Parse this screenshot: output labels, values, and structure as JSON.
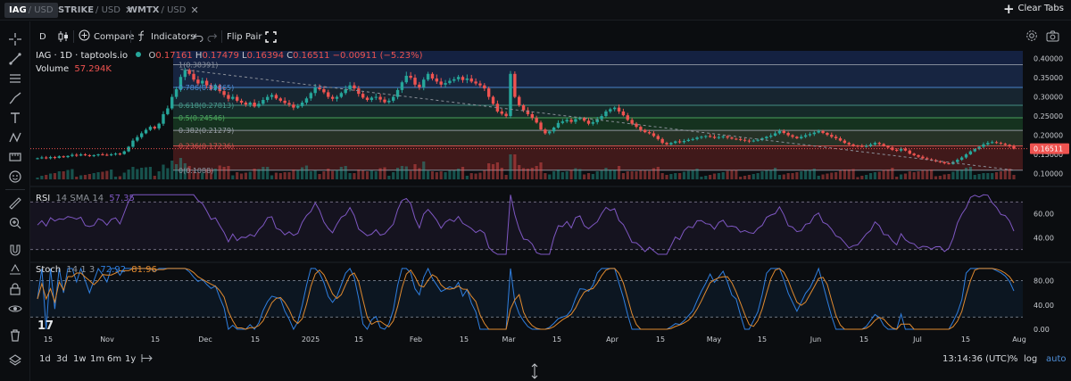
{
  "tabs": [
    {
      "symbol": "IAG",
      "quote": "/ USD",
      "active": true
    },
    {
      "symbol": "STRIKE",
      "quote": "/ USD",
      "active": false
    },
    {
      "symbol": "WMTX",
      "quote": "/ USD",
      "active": false
    }
  ],
  "tabs_close": "✕",
  "clear_tabs_label": "Clear Tabs",
  "toolbar": {
    "interval": "D",
    "compare": "Compare",
    "indicators": "Indicators",
    "flip_pair": "Flip Pair"
  },
  "legend": {
    "title": "IAG · 1D · taptools.io",
    "o_label": "O",
    "o": "0.17161",
    "h_label": "H",
    "h": "0.17479",
    "l_label": "L",
    "l": "0.16394",
    "c_label": "C",
    "c": "0.16511",
    "change": "−0.00911 (−5.23%)",
    "volume_label": "Volume",
    "volume": "57.294K"
  },
  "rsi_legend": {
    "label": "RSI",
    "params": "14 SMA 14",
    "value": "57.35"
  },
  "stoch_legend": {
    "label": "Stoch",
    "params": "14 1 3",
    "k": "72.92",
    "d": "81.96"
  },
  "fib_levels": [
    {
      "ratio": 1,
      "price": 0.38391,
      "label": "1(0.38391)",
      "color": "#8f96a3"
    },
    {
      "ratio": 0.786,
      "price": 0.32465,
      "label": "0.786(0.32465)",
      "color": "#4f8fd9"
    },
    {
      "ratio": 0.618,
      "price": 0.27813,
      "label": "0.618(0.27813)",
      "color": "#4a9b8e"
    },
    {
      "ratio": 0.5,
      "price": 0.24546,
      "label": "0.5(0.24546)",
      "color": "#4fae62"
    },
    {
      "ratio": 0.382,
      "price": 0.21279,
      "label": "0.382(0.21279)",
      "color": "#9aa0a8"
    },
    {
      "ratio": 0.236,
      "price": 0.17236,
      "label": "0.236(0.17236)",
      "color": "#d9534f"
    },
    {
      "ratio": 0,
      "price": 0.1088,
      "label": "0(0.1088)",
      "color": "#8f96a3"
    }
  ],
  "price_axis": [
    "0.40000",
    "0.35000",
    "0.30000",
    "0.25000",
    "0.20000",
    "0.15000",
    "0.10000"
  ],
  "last_price": "0.16511",
  "rsi_axis": [
    "60.00",
    "40.00"
  ],
  "stoch_axis": [
    "80.00",
    "40.00",
    "0.00"
  ],
  "time_axis": [
    "15",
    "Nov",
    "15",
    "Dec",
    "15",
    "2025",
    "15",
    "Feb",
    "15",
    "Mar",
    "15",
    "Apr",
    "15",
    "May",
    "15",
    "Jun",
    "15",
    "Jul",
    "15",
    "Aug"
  ],
  "ranges": [
    "1d",
    "3d",
    "1w",
    "1m",
    "6m",
    "1y"
  ],
  "clock": "13:14:36 (UTC)",
  "pct_label": "%",
  "log_label": "log",
  "auto_label": "auto",
  "colors": {
    "up": "#26a69a",
    "down": "#ef5350",
    "rsi": "#7e57c2",
    "stoch_k": "#2f7fe0",
    "stoch_d": "#e08a2f",
    "last_price_bg": "#ef5350"
  },
  "price_series": [
    0.14,
    0.142,
    0.14,
    0.143,
    0.141,
    0.145,
    0.143,
    0.146,
    0.149,
    0.147,
    0.15,
    0.148,
    0.146,
    0.148,
    0.15,
    0.149,
    0.148,
    0.15,
    0.152,
    0.151,
    0.158,
    0.17,
    0.186,
    0.195,
    0.205,
    0.214,
    0.222,
    0.218,
    0.23,
    0.255,
    0.27,
    0.3,
    0.32,
    0.352,
    0.37,
    0.36,
    0.345,
    0.335,
    0.342,
    0.33,
    0.32,
    0.33,
    0.315,
    0.305,
    0.295,
    0.3,
    0.29,
    0.285,
    0.28,
    0.285,
    0.275,
    0.282,
    0.292,
    0.3,
    0.305,
    0.296,
    0.29,
    0.284,
    0.28,
    0.272,
    0.276,
    0.285,
    0.296,
    0.31,
    0.324,
    0.32,
    0.312,
    0.3,
    0.295,
    0.3,
    0.31,
    0.32,
    0.33,
    0.322,
    0.308,
    0.298,
    0.292,
    0.298,
    0.3,
    0.293,
    0.286,
    0.29,
    0.3,
    0.318,
    0.338,
    0.355,
    0.35,
    0.332,
    0.325,
    0.345,
    0.36,
    0.348,
    0.34,
    0.332,
    0.336,
    0.342,
    0.346,
    0.352,
    0.344,
    0.348,
    0.34,
    0.335,
    0.33,
    0.322,
    0.3,
    0.282,
    0.262,
    0.256,
    0.25,
    0.36,
    0.3,
    0.278,
    0.265,
    0.255,
    0.245,
    0.233,
    0.215,
    0.205,
    0.21,
    0.22,
    0.232,
    0.236,
    0.24,
    0.235,
    0.242,
    0.245,
    0.238,
    0.23,
    0.234,
    0.242,
    0.25,
    0.262,
    0.268,
    0.272,
    0.262,
    0.252,
    0.24,
    0.23,
    0.222,
    0.214,
    0.208,
    0.205,
    0.198,
    0.19,
    0.18,
    0.176,
    0.18,
    0.184,
    0.182,
    0.185,
    0.188,
    0.19,
    0.194,
    0.196,
    0.198,
    0.196,
    0.193,
    0.195,
    0.197,
    0.194,
    0.191,
    0.19,
    0.188,
    0.186,
    0.184,
    0.186,
    0.188,
    0.192,
    0.196,
    0.199,
    0.205,
    0.211,
    0.206,
    0.2,
    0.196,
    0.192,
    0.196,
    0.2,
    0.203,
    0.207,
    0.211,
    0.206,
    0.201,
    0.196,
    0.192,
    0.186,
    0.18,
    0.176,
    0.173,
    0.172,
    0.17,
    0.172,
    0.176,
    0.18,
    0.177,
    0.172,
    0.168,
    0.162,
    0.16,
    0.165,
    0.16,
    0.152,
    0.148,
    0.144,
    0.14,
    0.137,
    0.135,
    0.132,
    0.13,
    0.127,
    0.125,
    0.13,
    0.136,
    0.142,
    0.15,
    0.158,
    0.164,
    0.17,
    0.176,
    0.18,
    0.182,
    0.18,
    0.178,
    0.175,
    0.171,
    0.165
  ]
}
